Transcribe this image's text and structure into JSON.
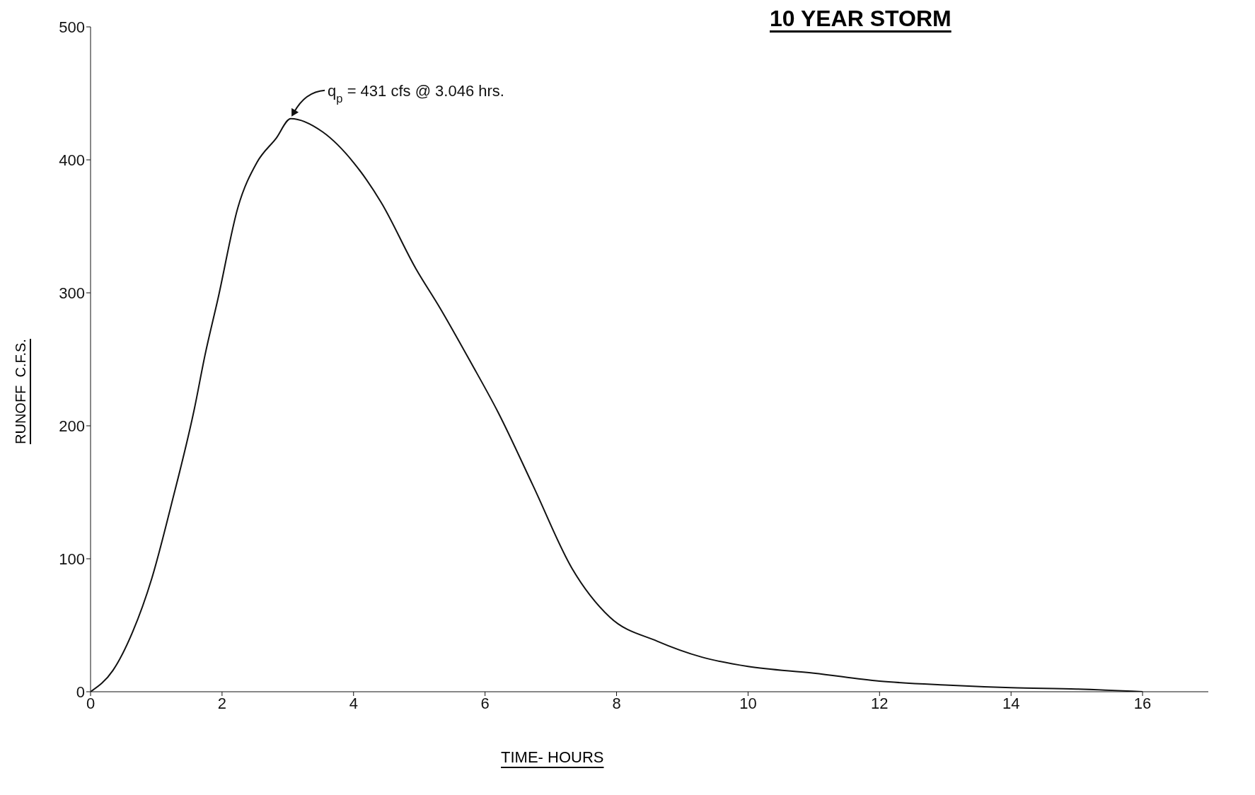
{
  "chart_data": {
    "type": "line",
    "title": "10 YEAR STORM",
    "xlabel": "TIME- HOURS",
    "ylabel": "RUNOFF  C.F.S.",
    "x": [
      0,
      0.34,
      0.64,
      0.93,
      1.23,
      1.58,
      1.74,
      1.94,
      2.24,
      2.53,
      2.82,
      3.046,
      3.53,
      4.0,
      4.42,
      4.95,
      5.31,
      5.78,
      6.2,
      6.73,
      7.32,
      7.9,
      8.62,
      9.3,
      10,
      11,
      12,
      13,
      14,
      15,
      16
    ],
    "series": [
      {
        "color": "#111111",
        "values": [
          0,
          16,
          45,
          85,
          141,
          213,
          253,
          296,
          364,
          398,
          416,
          431,
          421,
          398,
          368,
          318,
          289,
          248,
          210,
          155,
          93,
          56,
          38,
          26,
          19,
          14,
          8,
          5,
          3,
          2,
          0
        ]
      }
    ],
    "xlim": [
      0,
      17
    ],
    "xticks": [
      0,
      2,
      4,
      6,
      8,
      10,
      12,
      14,
      16
    ],
    "ylim": [
      0,
      500
    ],
    "yticks": [
      0,
      100,
      200,
      300,
      400,
      500
    ],
    "annotations": [
      {
        "text": "q$_{p}$ = 431 cfs @ 3.046 hrs.",
        "x": 3.046,
        "y": 431
      }
    ],
    "grid": false,
    "marker": "none",
    "line_style": "solid"
  }
}
